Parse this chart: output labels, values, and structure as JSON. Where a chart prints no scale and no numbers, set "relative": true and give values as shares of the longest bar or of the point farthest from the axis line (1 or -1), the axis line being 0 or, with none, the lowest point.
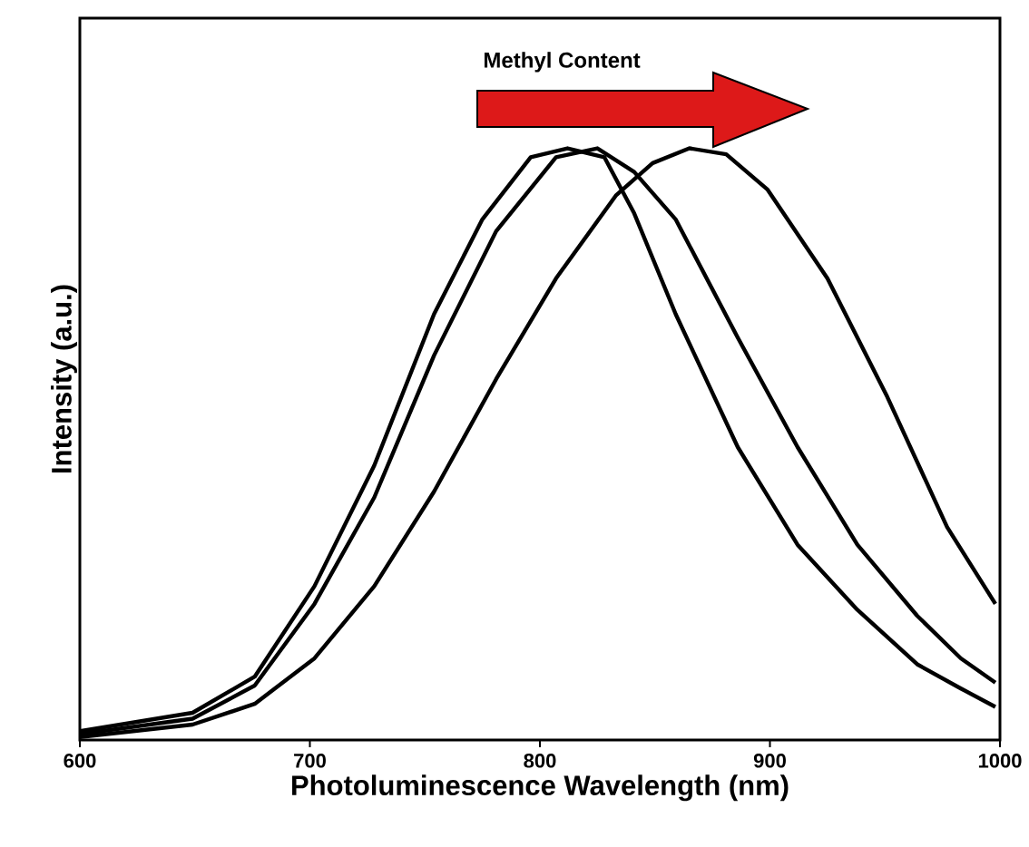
{
  "chart_data": {
    "type": "line",
    "relative": true,
    "xlabel": "Photoluminescence Wavelength (nm)",
    "ylabel": "Intensity (a.u.)",
    "annotations": [
      "Methyl Content"
    ],
    "xlim": [
      600,
      1000
    ],
    "xticks": [
      600,
      700,
      800,
      900,
      1000
    ],
    "grid": false,
    "marker": "none",
    "line_style": "solid",
    "series": [
      {
        "color": "#000000",
        "x": [
          600,
          649,
          676,
          702,
          728,
          754,
          775,
          796,
          812,
          828,
          841,
          859,
          886,
          912,
          938,
          964,
          983,
          998
        ],
        "values": [
          0.015,
          0.046,
          0.107,
          0.26,
          0.464,
          0.72,
          0.88,
          0.985,
          1.0,
          0.985,
          0.89,
          0.72,
          0.495,
          0.33,
          0.22,
          0.128,
          0.087,
          0.056
        ]
      },
      {
        "color": "#000000",
        "x": [
          600,
          649,
          676,
          702,
          728,
          754,
          781,
          807,
          825,
          841,
          859,
          886,
          912,
          938,
          964,
          983,
          998
        ],
        "values": [
          0.01,
          0.036,
          0.092,
          0.23,
          0.41,
          0.65,
          0.86,
          0.985,
          1.0,
          0.96,
          0.88,
          0.68,
          0.495,
          0.33,
          0.21,
          0.138,
          0.097
        ]
      },
      {
        "color": "#000000",
        "x": [
          600,
          649,
          676,
          702,
          728,
          754,
          781,
          807,
          833,
          849,
          865,
          881,
          899,
          925,
          951,
          977,
          998
        ],
        "values": [
          0.005,
          0.026,
          0.061,
          0.138,
          0.26,
          0.42,
          0.61,
          0.78,
          0.92,
          0.975,
          1.0,
          0.99,
          0.93,
          0.78,
          0.58,
          0.36,
          0.23
        ]
      }
    ]
  }
}
